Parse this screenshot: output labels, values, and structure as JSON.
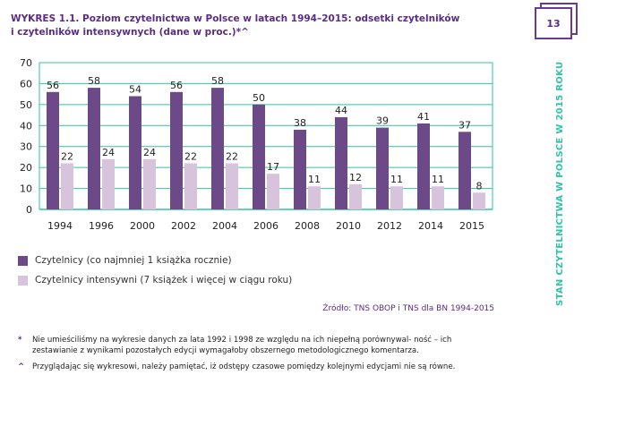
{
  "title": {
    "line1": "WYKRES 1.1. Poziom czytelnictwa w Polsce w latach 1994–2015: odsetki czytelników",
    "line2": "i czytelników intensywnych (dane w proc.)*^"
  },
  "page_number": "13",
  "side_title": "STAN CZYTELNICTWA  W  POLSCE W  2015 ROKU",
  "legend": {
    "series1": "Czytelnicy (co najmniej 1 książka rocznie)",
    "series2": "Czytelnicy intensywni (7 książek i więcej w ciągu roku)"
  },
  "source": "Źródło: TNS OBOP i TNS dla BN 1994-2015",
  "notes": [
    {
      "mark": "*",
      "text": "Nie umieściliśmy na wykresie danych za lata 1992 i 1998 ze względu na ich niepełną porównywal- ność – ich zestawianie z wynikami pozostałych edycji wymagałoby obszernego metodologicznego komentarza."
    },
    {
      "mark": "^",
      "text": "Przyglądając się wykresowi, należy pamiętać, iż odstępy czasowe pomiędzy kolejnymi edycjami nie są równe."
    }
  ],
  "colors": {
    "series1": "#6b4a87",
    "series2": "#d7c3dc",
    "gridline": "#2ec4a6",
    "accent": "#5b2d82"
  },
  "chart_data": {
    "type": "bar",
    "categories": [
      "1994",
      "1996",
      "2000",
      "2002",
      "2004",
      "2006",
      "2008",
      "2010",
      "2012",
      "2014",
      "2015"
    ],
    "series": [
      {
        "name": "Czytelnicy (co najmniej 1 książka rocznie)",
        "values": [
          56,
          58,
          54,
          56,
          58,
          50,
          38,
          44,
          39,
          41,
          37
        ]
      },
      {
        "name": "Czytelnicy intensywni (7 książek i więcej w ciągu roku)",
        "values": [
          22,
          24,
          24,
          22,
          22,
          17,
          11,
          12,
          11,
          11,
          8
        ]
      }
    ],
    "yticks": [
      0,
      10,
      20,
      30,
      40,
      50,
      60,
      70
    ],
    "ylim": [
      0,
      70
    ],
    "grid": true,
    "legend_position": "bottom-left"
  }
}
